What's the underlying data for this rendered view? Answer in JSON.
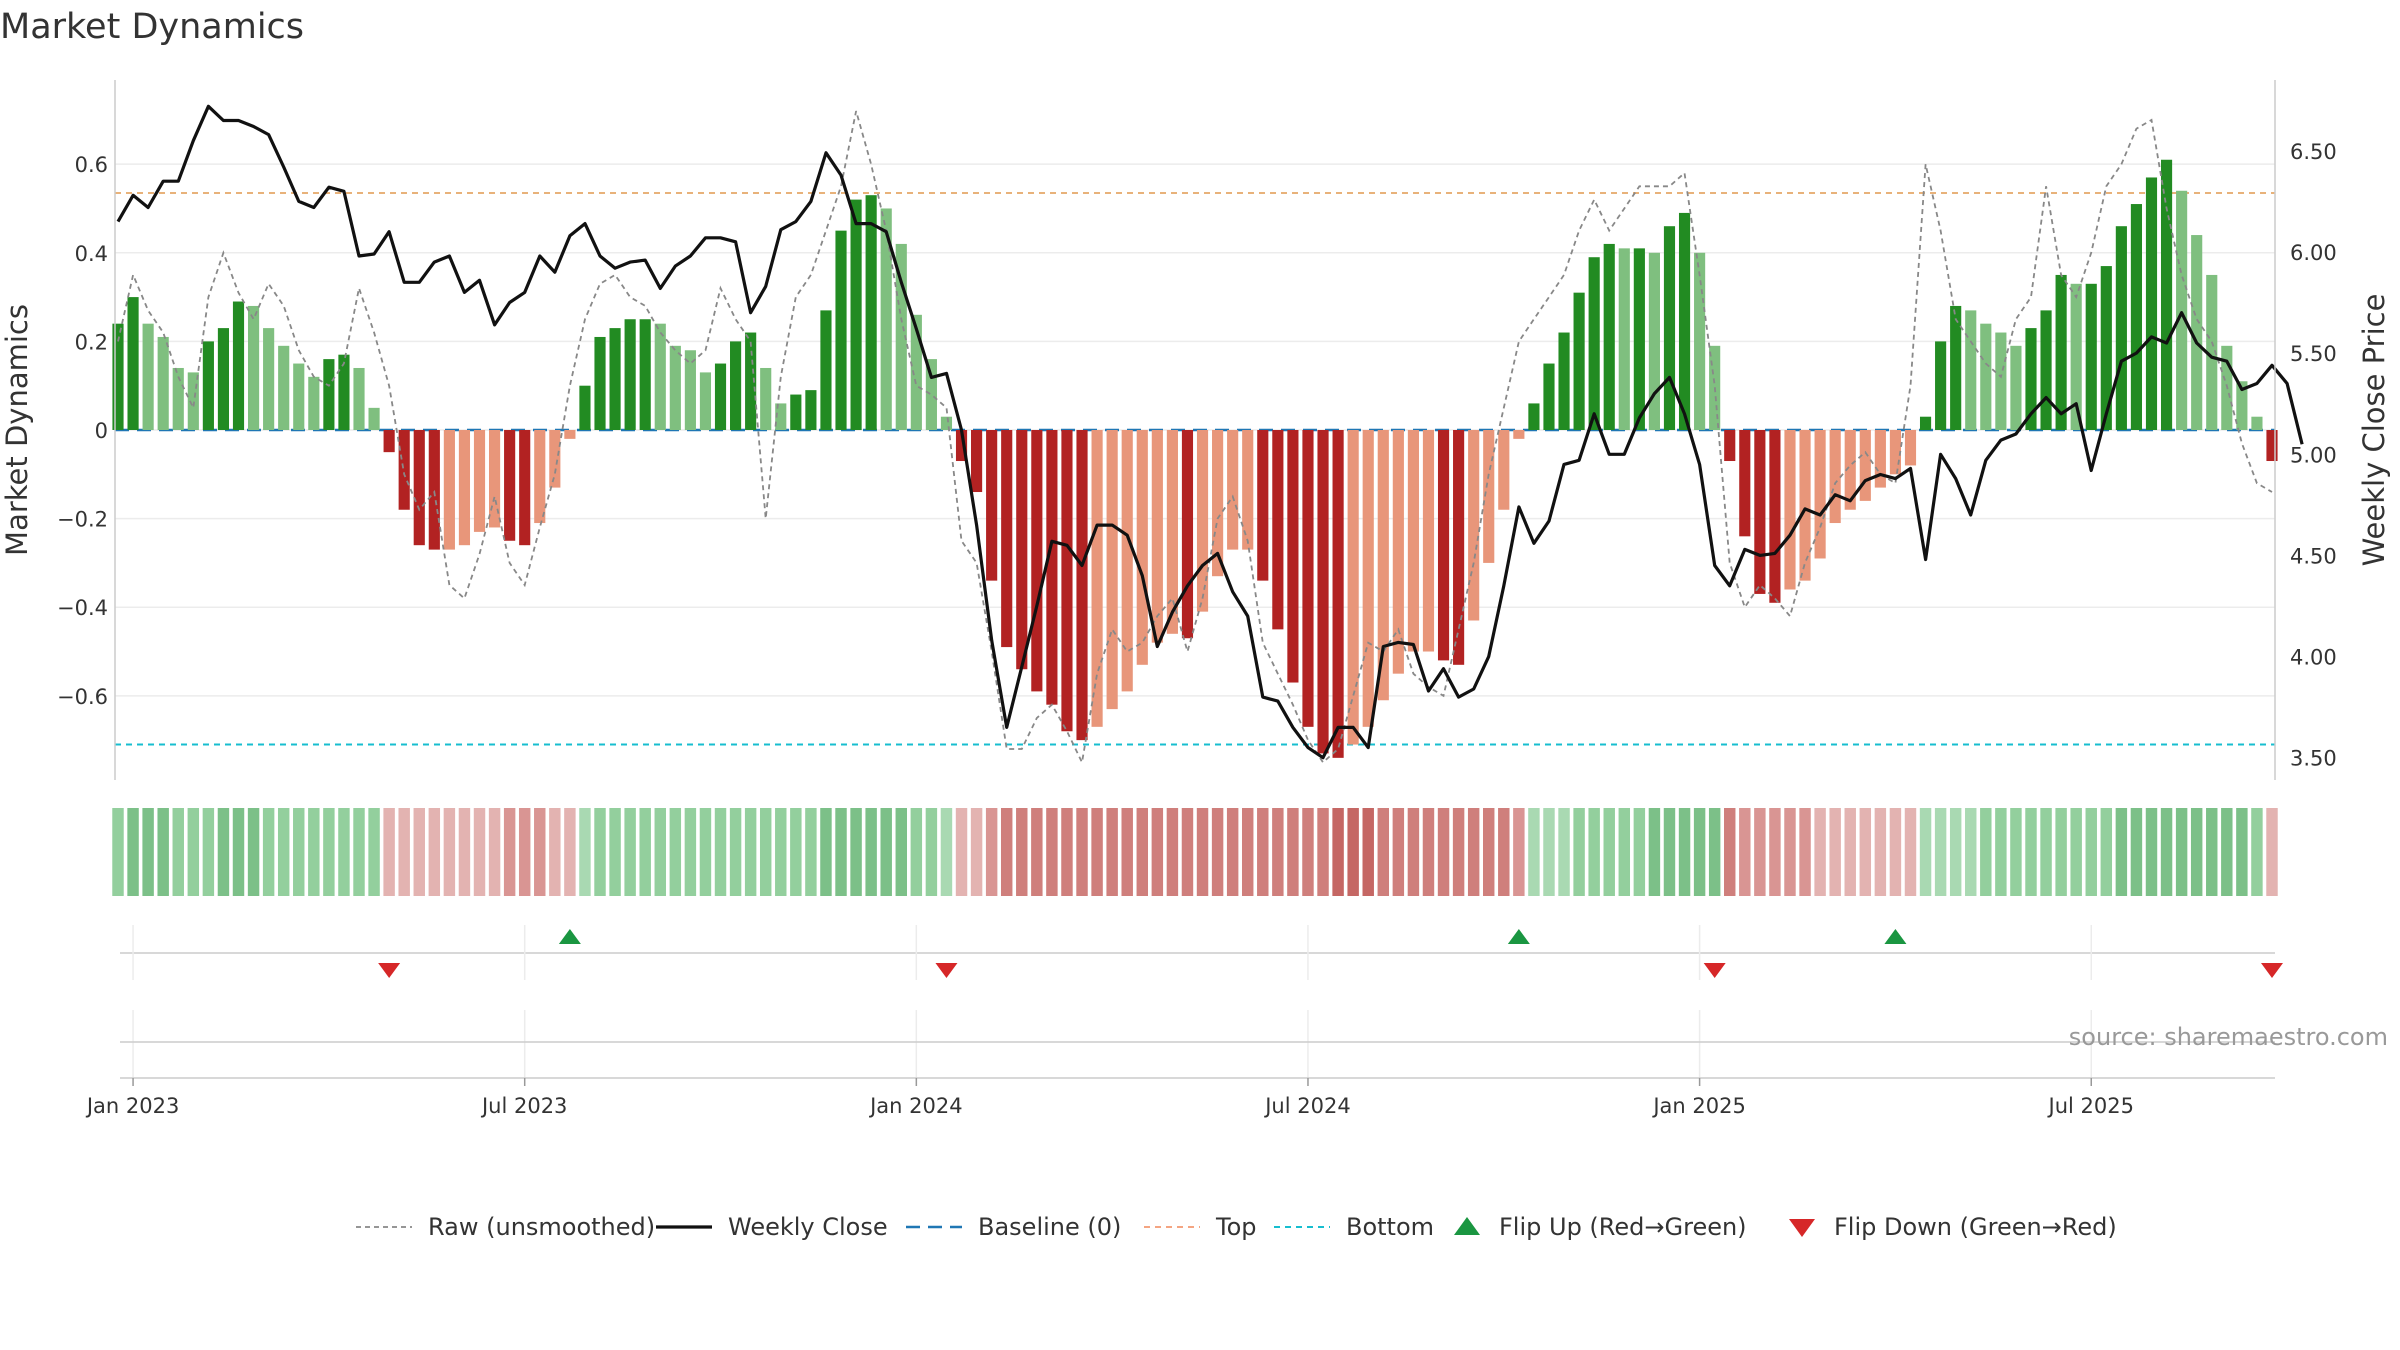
{
  "chart_data": {
    "type": "bar",
    "title": "Market Dynamics",
    "ylabel": "Market Dynamics",
    "y2label": "Weekly Close Price",
    "source": "source: sharemaestro.com",
    "ylim": [
      -0.79,
      0.79
    ],
    "y2lim": [
      3.39,
      6.85
    ],
    "top_line": 0.535,
    "bottom_line": -0.71,
    "left_ticks": [
      {
        "v": 0.6,
        "t": "0.6"
      },
      {
        "v": 0.4,
        "t": "0.4"
      },
      {
        "v": 0.2,
        "t": "0.2"
      },
      {
        "v": 0,
        "t": "0"
      },
      {
        "v": -0.2,
        "t": "−0.2"
      },
      {
        "v": -0.4,
        "t": "−0.4"
      },
      {
        "v": -0.6,
        "t": "−0.6"
      }
    ],
    "right_ticks": [
      {
        "v": 6.5,
        "t": "6.50"
      },
      {
        "v": 6.0,
        "t": "6.00"
      },
      {
        "v": 5.5,
        "t": "5.50"
      },
      {
        "v": 5.0,
        "t": "5.00"
      },
      {
        "v": 4.5,
        "t": "4.50"
      },
      {
        "v": 4.0,
        "t": "4.00"
      },
      {
        "v": 3.5,
        "t": "3.50"
      }
    ],
    "x_ticks": [
      {
        "i": 1,
        "t": "Jan 2023"
      },
      {
        "i": 27,
        "t": "Jul 2023"
      },
      {
        "i": 53,
        "t": "Jan 2024"
      },
      {
        "i": 79,
        "t": "Jul 2024"
      },
      {
        "i": 105,
        "t": "Jan 2025"
      },
      {
        "i": 131,
        "t": "Jul 2025"
      }
    ],
    "n_weeks": 144,
    "dynamics": [
      0.24,
      0.3,
      0.24,
      0.21,
      0.14,
      0.13,
      0.2,
      0.23,
      0.29,
      0.28,
      0.23,
      0.19,
      0.15,
      0.12,
      0.16,
      0.17,
      0.14,
      0.05,
      -0.05,
      -0.18,
      -0.26,
      -0.27,
      -0.27,
      -0.26,
      -0.23,
      -0.22,
      -0.25,
      -0.26,
      -0.21,
      -0.13,
      -0.02,
      0.1,
      0.21,
      0.23,
      0.25,
      0.25,
      0.24,
      0.19,
      0.18,
      0.13,
      0.15,
      0.2,
      0.22,
      0.14,
      0.06,
      0.08,
      0.09,
      0.27,
      0.45,
      0.52,
      0.53,
      0.5,
      0.42,
      0.26,
      0.16,
      0.03,
      -0.07,
      -0.14,
      -0.34,
      -0.49,
      -0.54,
      -0.59,
      -0.62,
      -0.68,
      -0.7,
      -0.67,
      -0.63,
      -0.59,
      -0.53,
      -0.48,
      -0.46,
      -0.47,
      -0.41,
      -0.33,
      -0.27,
      -0.27,
      -0.34,
      -0.45,
      -0.57,
      -0.67,
      -0.73,
      -0.74,
      -0.71,
      -0.67,
      -0.61,
      -0.55,
      -0.5,
      -0.5,
      -0.52,
      -0.53,
      -0.43,
      -0.3,
      -0.18,
      -0.02,
      0.06,
      0.15,
      0.22,
      0.31,
      0.39,
      0.42,
      0.41,
      0.41,
      0.4,
      0.46,
      0.49,
      0.4,
      0.19,
      -0.07,
      -0.24,
      -0.37,
      -0.39,
      -0.36,
      -0.34,
      -0.29,
      -0.21,
      -0.18,
      -0.16,
      -0.13,
      -0.1,
      -0.08,
      0.03,
      0.2,
      0.28,
      0.27,
      0.24,
      0.22,
      0.19,
      0.23,
      0.27,
      0.35,
      0.33,
      0.33,
      0.37,
      0.46,
      0.51,
      0.57,
      0.61,
      0.54,
      0.44,
      0.35,
      0.19,
      0.11,
      0.03,
      -0.07
    ],
    "raw": [
      0.2,
      0.35,
      0.27,
      0.22,
      0.12,
      0.05,
      0.3,
      0.4,
      0.31,
      0.25,
      0.33,
      0.28,
      0.18,
      0.12,
      0.1,
      0.15,
      0.32,
      0.22,
      0.1,
      -0.1,
      -0.18,
      -0.14,
      -0.35,
      -0.38,
      -0.28,
      -0.15,
      -0.3,
      -0.35,
      -0.22,
      -0.1,
      0.1,
      0.25,
      0.33,
      0.35,
      0.3,
      0.28,
      0.22,
      0.18,
      0.15,
      0.18,
      0.32,
      0.25,
      0.2,
      -0.2,
      0.12,
      0.3,
      0.35,
      0.45,
      0.55,
      0.72,
      0.6,
      0.45,
      0.25,
      0.1,
      0.08,
      0.05,
      -0.25,
      -0.3,
      -0.5,
      -0.72,
      -0.72,
      -0.65,
      -0.62,
      -0.68,
      -0.75,
      -0.55,
      -0.45,
      -0.5,
      -0.48,
      -0.42,
      -0.38,
      -0.5,
      -0.38,
      -0.2,
      -0.15,
      -0.25,
      -0.48,
      -0.55,
      -0.62,
      -0.7,
      -0.75,
      -0.72,
      -0.6,
      -0.48,
      -0.5,
      -0.45,
      -0.55,
      -0.58,
      -0.6,
      -0.45,
      -0.3,
      -0.1,
      0.05,
      0.2,
      0.25,
      0.3,
      0.35,
      0.45,
      0.52,
      0.45,
      0.5,
      0.55,
      0.55,
      0.55,
      0.58,
      0.35,
      0.1,
      -0.3,
      -0.4,
      -0.35,
      -0.38,
      -0.42,
      -0.3,
      -0.22,
      -0.12,
      -0.08,
      -0.05,
      -0.1,
      -0.12,
      0.1,
      0.6,
      0.45,
      0.25,
      0.2,
      0.15,
      0.12,
      0.25,
      0.3,
      0.55,
      0.35,
      0.3,
      0.4,
      0.55,
      0.6,
      0.68,
      0.7,
      0.5,
      0.35,
      0.25,
      0.2,
      0.1,
      -0.03,
      -0.12,
      -0.14
    ],
    "close": [
      6.15,
      6.28,
      6.22,
      6.35,
      6.35,
      6.55,
      6.72,
      6.65,
      6.65,
      6.62,
      6.58,
      6.42,
      6.25,
      6.22,
      6.32,
      6.3,
      5.98,
      5.99,
      6.1,
      5.85,
      5.85,
      5.95,
      5.98,
      5.8,
      5.86,
      5.64,
      5.75,
      5.8,
      5.98,
      5.9,
      6.08,
      6.14,
      5.98,
      5.92,
      5.95,
      5.96,
      5.82,
      5.93,
      5.98,
      6.07,
      6.07,
      6.05,
      5.7,
      5.83,
      6.11,
      6.15,
      6.25,
      6.49,
      6.38,
      6.14,
      6.14,
      6.1,
      5.85,
      5.62,
      5.38,
      5.4,
      5.12,
      4.65,
      4.08,
      3.65,
      3.95,
      4.25,
      4.57,
      4.55,
      4.45,
      4.65,
      4.65,
      4.6,
      4.4,
      4.05,
      4.22,
      4.35,
      4.45,
      4.51,
      4.32,
      4.2,
      3.8,
      3.78,
      3.65,
      3.55,
      3.5,
      3.65,
      3.65,
      3.55,
      4.05,
      4.07,
      4.06,
      3.83,
      3.94,
      3.8,
      3.84,
      4.0,
      4.35,
      4.74,
      4.56,
      4.67,
      4.95,
      4.97,
      5.2,
      5.0,
      5.0,
      5.18,
      5.3,
      5.38,
      5.2,
      4.95,
      4.45,
      4.35,
      4.53,
      4.5,
      4.51,
      4.6,
      4.73,
      4.7,
      4.8,
      4.77,
      4.87,
      4.9,
      4.88,
      4.93,
      4.48,
      5.0,
      4.88,
      4.7,
      4.97,
      5.07,
      5.1,
      5.2,
      5.28,
      5.2,
      5.25,
      4.92,
      5.2,
      5.46,
      5.5,
      5.58,
      5.55,
      5.7,
      5.55,
      5.48,
      5.46,
      5.32,
      5.35,
      5.44,
      5.35,
      5.05
    ],
    "regime_shades": [
      2,
      3,
      3,
      3,
      2,
      2,
      2,
      3,
      3,
      3,
      2,
      2,
      2,
      2,
      2,
      2,
      2,
      2,
      1,
      1,
      1,
      1,
      1,
      1,
      1,
      1,
      2,
      2,
      2,
      1,
      1,
      1,
      2,
      2,
      2,
      2,
      2,
      2,
      2,
      2,
      2,
      2,
      2,
      2,
      2,
      2,
      2,
      3,
      3,
      3,
      3,
      3,
      3,
      2,
      2,
      1,
      1,
      1,
      2,
      3,
      3,
      3,
      3,
      3,
      3,
      3,
      3,
      3,
      3,
      3,
      3,
      3,
      3,
      3,
      3,
      3,
      3,
      3,
      3,
      3,
      3,
      4,
      4,
      4,
      3,
      3,
      3,
      3,
      3,
      3,
      3,
      3,
      3,
      2,
      1,
      1,
      1,
      2,
      2,
      2,
      2,
      2,
      3,
      3,
      3,
      3,
      3,
      3,
      2,
      2,
      2,
      2,
      2,
      1,
      1,
      1,
      1,
      1,
      1,
      1,
      1,
      1,
      1,
      1,
      2,
      2,
      2,
      2,
      2,
      2,
      2,
      2,
      2,
      3,
      3,
      3,
      3,
      3,
      3,
      3,
      3,
      3,
      2,
      1
    ],
    "flips_up": [
      30,
      93,
      118
    ],
    "flips_down": [
      18,
      55,
      106,
      143
    ],
    "legend": [
      {
        "key": "raw",
        "label": "Raw (unsmoothed)",
        "color": "#888888"
      },
      {
        "key": "close",
        "label": "Weekly Close",
        "color": "#111111"
      },
      {
        "key": "baseline",
        "label": "Baseline (0)",
        "color": "#1f77b4"
      },
      {
        "key": "top",
        "label": "Top",
        "color": "#f4a582"
      },
      {
        "key": "bottom",
        "label": "Bottom",
        "color": "#17becf"
      },
      {
        "key": "up",
        "label": "Flip Up (Red→Green)",
        "color": "#1a9641"
      },
      {
        "key": "down",
        "label": "Flip Down (Green→Red)",
        "color": "#d62728"
      }
    ],
    "colors": {
      "green_strong": "#228b22",
      "green_light": "#7fbf7f",
      "red_strong": "#b22222",
      "red_light": "#e8967a",
      "top_line": "#e8b27a",
      "bottom_line": "#17becf",
      "baseline": "#1f77b4",
      "raw": "#888888",
      "close": "#111111",
      "band_green": [
        "#c7e6cc",
        "#a9d9b2",
        "#93cf9d",
        "#7cc088",
        "#66b375"
      ],
      "band_red": [
        "#ecd0cf",
        "#e3b3b1",
        "#d99593",
        "#cf7f7c",
        "#c56764"
      ]
    }
  }
}
